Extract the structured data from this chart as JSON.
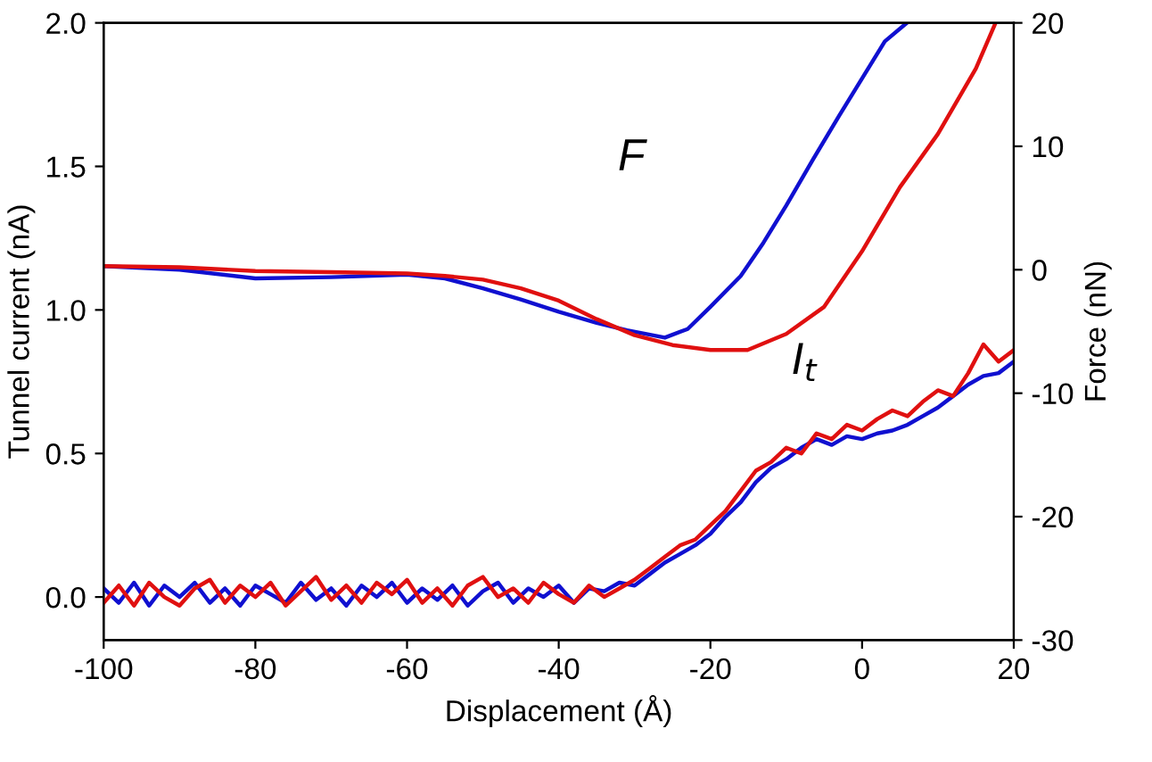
{
  "chart_data": {
    "type": "line",
    "xlabel": "Displacement (Å)",
    "ylabel": "Tunnel current (nA)",
    "y2label": "Force (nN)",
    "xlim": [
      -100,
      20
    ],
    "xticks": [
      -100,
      -80,
      -60,
      -40,
      -20,
      0,
      20
    ],
    "ylim": [
      -0.15,
      2.0
    ],
    "yticks": [
      {
        "value": 0,
        "label": "0.0"
      },
      {
        "value": 0.5,
        "label": "0.5"
      },
      {
        "value": 1.0,
        "label": "1.0"
      },
      {
        "value": 1.5,
        "label": "1.5"
      },
      {
        "value": 2.0,
        "label": "2.0"
      }
    ],
    "y2lim": [
      -30,
      20
    ],
    "y2ticks": [
      -30,
      -20,
      -10,
      0,
      10,
      20
    ],
    "grid": false,
    "marker": "none",
    "line_style": "solid",
    "annotations": [
      "F",
      "I$_{t}$"
    ],
    "series": [
      {
        "color": "#1010d0",
        "x": [
          -100,
          -98,
          -96,
          -94,
          -92,
          -90,
          -88,
          -86,
          -84,
          -82,
          -80,
          -78,
          -76,
          -74,
          -72,
          -70,
          -68,
          -66,
          -64,
          -62,
          -60,
          -58,
          -56,
          -54,
          -52,
          -50,
          -48,
          -46,
          -44,
          -42,
          -40,
          -38,
          -36,
          -34,
          -32,
          -30,
          -28,
          -26,
          -24,
          -22,
          -20,
          -18,
          -16,
          -14,
          -12,
          -10,
          -8,
          -6,
          -4,
          -2,
          0,
          2,
          4,
          6,
          8,
          10,
          12,
          14,
          16,
          18,
          20
        ],
        "values": [
          0.03,
          -0.02,
          0.05,
          -0.03,
          0.04,
          0.0,
          0.05,
          -0.02,
          0.03,
          -0.03,
          0.04,
          0.01,
          -0.02,
          0.05,
          -0.01,
          0.03,
          -0.03,
          0.04,
          0.0,
          0.05,
          -0.02,
          0.03,
          -0.01,
          0.04,
          -0.03,
          0.02,
          0.05,
          -0.02,
          0.03,
          0.0,
          0.04,
          -0.02,
          0.03,
          0.02,
          0.05,
          0.04,
          0.08,
          0.12,
          0.15,
          0.18,
          0.22,
          0.28,
          0.33,
          0.4,
          0.45,
          0.48,
          0.52,
          0.55,
          0.53,
          0.56,
          0.55,
          0.57,
          0.58,
          0.6,
          0.63,
          0.66,
          0.7,
          0.74,
          0.77,
          0.78,
          0.82
        ]
      },
      {
        "color": "#e01010",
        "x": [
          -100,
          -98,
          -96,
          -94,
          -92,
          -90,
          -88,
          -86,
          -84,
          -82,
          -80,
          -78,
          -76,
          -74,
          -72,
          -70,
          -68,
          -66,
          -64,
          -62,
          -60,
          -58,
          -56,
          -54,
          -52,
          -50,
          -48,
          -46,
          -44,
          -42,
          -40,
          -38,
          -36,
          -34,
          -32,
          -30,
          -28,
          -26,
          -24,
          -22,
          -20,
          -18,
          -16,
          -14,
          -12,
          -10,
          -8,
          -6,
          -4,
          -2,
          0,
          2,
          4,
          6,
          8,
          10,
          12,
          14,
          16,
          18,
          20
        ],
        "values": [
          -0.02,
          0.04,
          -0.03,
          0.05,
          0.0,
          -0.03,
          0.03,
          0.06,
          -0.02,
          0.04,
          0.0,
          0.05,
          -0.03,
          0.02,
          0.07,
          -0.01,
          0.04,
          -0.02,
          0.05,
          0.01,
          0.06,
          -0.02,
          0.03,
          -0.03,
          0.04,
          0.07,
          0.0,
          0.03,
          -0.02,
          0.05,
          0.01,
          -0.02,
          0.04,
          0.0,
          0.03,
          0.06,
          0.1,
          0.14,
          0.18,
          0.2,
          0.25,
          0.3,
          0.37,
          0.44,
          0.47,
          0.52,
          0.5,
          0.57,
          0.55,
          0.6,
          0.58,
          0.62,
          0.65,
          0.63,
          0.68,
          0.72,
          0.7,
          0.78,
          0.88,
          0.82,
          0.86
        ]
      },
      {
        "color": "#1010d0",
        "axis": "y2",
        "x": [
          -100,
          -90,
          -80,
          -70,
          -60,
          -55,
          -50,
          -45,
          -40,
          -35,
          -31,
          -26,
          -23,
          -20,
          -16,
          -13,
          -10,
          -6.5,
          -3,
          0,
          3,
          5.9
        ],
        "values": [
          0.3,
          0.0,
          -0.7,
          -0.6,
          -0.4,
          -0.7,
          -1.5,
          -2.4,
          -3.4,
          -4.3,
          -4.9,
          -5.5,
          -4.8,
          -3.0,
          -0.5,
          2.2,
          5.2,
          8.9,
          12.5,
          15.5,
          18.5,
          20
        ]
      },
      {
        "color": "#e01010",
        "axis": "y2",
        "x": [
          -100,
          -90,
          -80,
          -70,
          -60,
          -55,
          -50,
          -45,
          -40,
          -35,
          -30,
          -25,
          -20,
          -15.1,
          -10,
          -5,
          0,
          5,
          10,
          15,
          17.6
        ],
        "values": [
          0.3,
          0.2,
          -0.1,
          -0.2,
          -0.3,
          -0.5,
          -0.8,
          -1.5,
          -2.5,
          -4.0,
          -5.3,
          -6.1,
          -6.5,
          -6.5,
          -5.2,
          -3.0,
          1.5,
          6.7,
          11.0,
          16.3,
          20
        ]
      }
    ]
  }
}
